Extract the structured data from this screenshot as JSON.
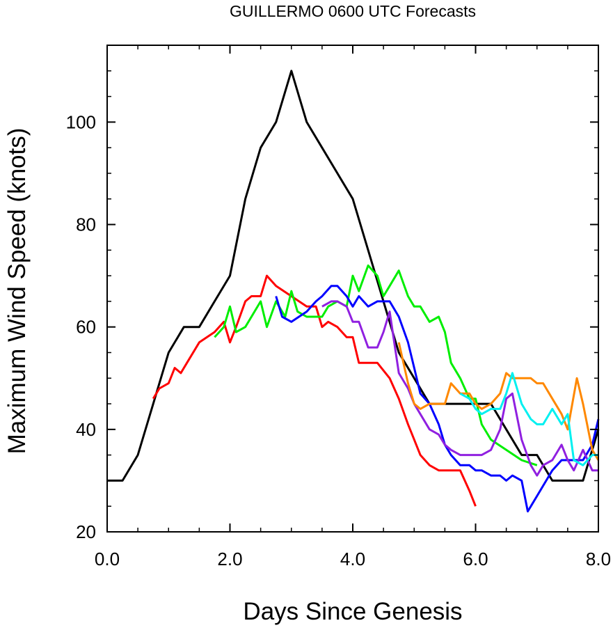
{
  "chart_data": {
    "type": "line",
    "title": "GUILLERMO 0600 UTC Forecasts",
    "xlabel": "Days Since Genesis",
    "ylabel": "Maximum Wind Speed (knots)",
    "xlim": [
      0,
      8
    ],
    "ylim": [
      20,
      115
    ],
    "x_ticks": [
      "0.0",
      "2.0",
      "4.0",
      "6.0",
      "8.0"
    ],
    "x_tick_values": [
      0,
      2,
      4,
      6,
      8
    ],
    "y_ticks": [
      "20",
      "40",
      "60",
      "80",
      "100"
    ],
    "y_tick_values": [
      20,
      40,
      60,
      80,
      100
    ],
    "grid": false,
    "legend": "none",
    "series": [
      {
        "color": "#000000",
        "x": [
          0,
          0.25,
          0.5,
          0.75,
          1.0,
          1.25,
          1.5,
          1.75,
          2.0,
          2.25,
          2.5,
          2.75,
          3.0,
          3.25,
          3.5,
          3.75,
          4.0,
          4.25,
          4.5,
          4.75,
          5.0,
          5.25,
          5.5,
          5.75,
          6.0,
          6.25,
          6.5,
          6.75,
          7.0,
          7.25,
          7.5,
          7.75,
          8.0
        ],
        "y": [
          30,
          30,
          35,
          45,
          55,
          60,
          60,
          65,
          70,
          85,
          95,
          100,
          110,
          100,
          95,
          90,
          85,
          75,
          65,
          55,
          50,
          45,
          45,
          45,
          45,
          45,
          40,
          35,
          35,
          30,
          30,
          30,
          40
        ]
      },
      {
        "color": "#ff0000",
        "x": [
          0.75,
          0.85,
          1.0,
          1.1,
          1.2,
          1.3,
          1.5,
          1.75,
          1.9,
          2.0,
          2.1,
          2.25,
          2.35,
          2.5,
          2.6,
          2.75,
          3.0,
          3.25,
          3.4,
          3.5,
          3.6,
          3.75,
          3.9,
          4.0,
          4.1,
          4.25,
          4.4,
          4.6,
          4.75,
          4.9,
          5.0,
          5.1,
          5.25,
          5.4,
          5.6,
          5.75,
          5.9,
          6.0
        ],
        "y": [
          46,
          48,
          49,
          52,
          51,
          53,
          57,
          59,
          61,
          57,
          60,
          65,
          66,
          66,
          70,
          68,
          66,
          64,
          64,
          60,
          61,
          60,
          58,
          58,
          53,
          53,
          53,
          50,
          46,
          41,
          38,
          35,
          33,
          32,
          32,
          32,
          28,
          25
        ]
      },
      {
        "color": "#00ee00",
        "x": [
          1.75,
          1.9,
          2.0,
          2.1,
          2.25,
          2.4,
          2.5,
          2.6,
          2.75,
          2.9,
          3.0,
          3.1,
          3.25,
          3.5,
          3.6,
          3.75,
          3.9,
          4.0,
          4.1,
          4.25,
          4.4,
          4.5,
          4.6,
          4.75,
          4.9,
          5.0,
          5.1,
          5.25,
          5.4,
          5.5,
          5.6,
          5.75,
          5.9,
          6.0,
          6.1,
          6.25,
          6.5,
          6.75,
          7.0
        ],
        "y": [
          58,
          60,
          64,
          59,
          60,
          63,
          65,
          60,
          65,
          62,
          67,
          63,
          62,
          62,
          64,
          65,
          64,
          70,
          67,
          72,
          70,
          66,
          68,
          71,
          66,
          64,
          64,
          61,
          62,
          59,
          53,
          50,
          46,
          46,
          41,
          38,
          36,
          34,
          33
        ]
      },
      {
        "color": "#0000ff",
        "x": [
          2.75,
          2.85,
          3.0,
          3.25,
          3.4,
          3.5,
          3.65,
          3.75,
          3.9,
          4.0,
          4.1,
          4.25,
          4.4,
          4.5,
          4.6,
          4.75,
          4.9,
          5.0,
          5.1,
          5.25,
          5.4,
          5.5,
          5.6,
          5.75,
          5.9,
          6.0,
          6.1,
          6.25,
          6.4,
          6.5,
          6.6,
          6.75,
          6.85,
          7.0,
          7.15,
          7.25,
          7.4,
          7.5,
          7.65,
          7.75,
          7.9,
          8.0
        ],
        "y": [
          66,
          62,
          61,
          63,
          65,
          66,
          68,
          68,
          66,
          64,
          66,
          64,
          65,
          65,
          65,
          62,
          57,
          52,
          47,
          45,
          41,
          37,
          35,
          33,
          33,
          32,
          32,
          31,
          31,
          30,
          31,
          30,
          24,
          27,
          30,
          32,
          34,
          34,
          34,
          34,
          37,
          42
        ]
      },
      {
        "color": "#9020e0",
        "x": [
          3.5,
          3.65,
          3.75,
          3.9,
          4.0,
          4.1,
          4.25,
          4.4,
          4.5,
          4.6,
          4.75,
          4.9,
          5.0,
          5.1,
          5.25,
          5.4,
          5.5,
          5.6,
          5.75,
          5.9,
          6.0,
          6.1,
          6.25,
          6.4,
          6.5,
          6.6,
          6.75,
          6.9,
          7.0,
          7.1,
          7.25,
          7.4,
          7.5,
          7.6,
          7.75,
          7.9,
          8.0
        ],
        "y": [
          64,
          65,
          65,
          64,
          61,
          61,
          56,
          56,
          59,
          63,
          51,
          48,
          45,
          43,
          40,
          39,
          37,
          36,
          35,
          35,
          35,
          35,
          36,
          40,
          46,
          47,
          38,
          33,
          31,
          33,
          34,
          37,
          34,
          32,
          36,
          32,
          32
        ]
      },
      {
        "color": "#ff8800",
        "x": [
          4.75,
          4.9,
          5.0,
          5.1,
          5.25,
          5.4,
          5.5,
          5.6,
          5.75,
          5.9,
          6.0,
          6.1,
          6.25,
          6.4,
          6.5,
          6.6,
          6.75,
          6.9,
          7.0,
          7.1,
          7.25,
          7.4,
          7.5,
          7.65,
          7.75,
          7.9,
          8.0
        ],
        "y": [
          57,
          49,
          45,
          44,
          45,
          45,
          45,
          49,
          47,
          47,
          45,
          44,
          45,
          47,
          51,
          50,
          50,
          50,
          49,
          49,
          46,
          43,
          40,
          50,
          45,
          36,
          34
        ]
      },
      {
        "color": "#00f0f0",
        "x": [
          5.75,
          5.9,
          6.0,
          6.1,
          6.25,
          6.4,
          6.5,
          6.6,
          6.75,
          6.9,
          7.0,
          7.1,
          7.25,
          7.4,
          7.5,
          7.6,
          7.75,
          7.9,
          8.0
        ],
        "y": [
          47,
          46,
          44,
          43,
          44,
          44,
          47,
          51,
          45,
          42,
          41,
          41,
          44,
          41,
          43,
          34,
          33,
          35,
          35
        ]
      }
    ]
  }
}
